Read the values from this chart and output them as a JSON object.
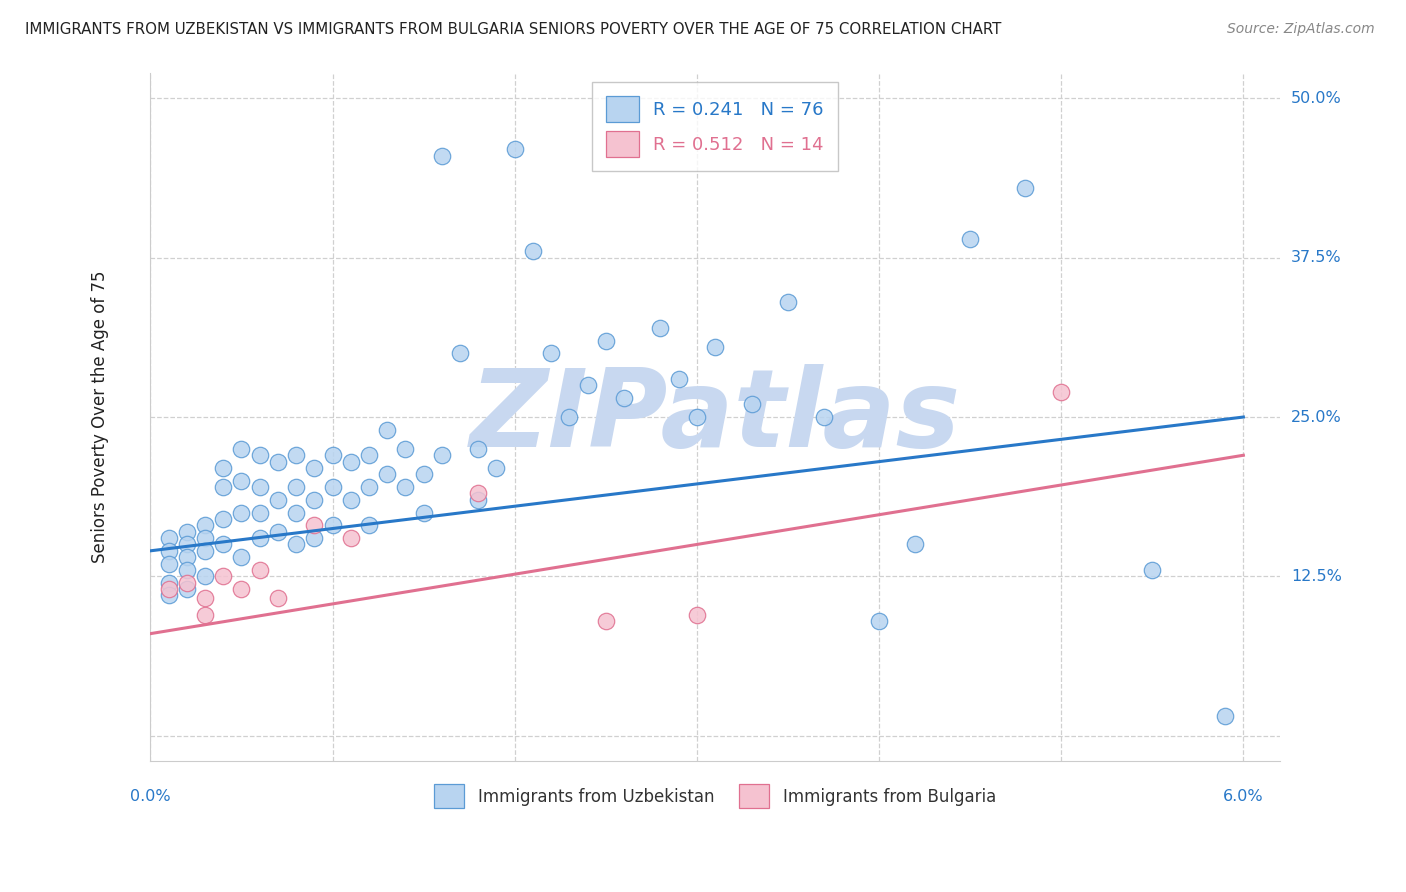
{
  "title": "IMMIGRANTS FROM UZBEKISTAN VS IMMIGRANTS FROM BULGARIA SENIORS POVERTY OVER THE AGE OF 75 CORRELATION CHART",
  "source": "Source: ZipAtlas.com",
  "ylabel": "Seniors Poverty Over the Age of 75",
  "xlim": [
    0.0,
    0.062
  ],
  "ylim": [
    -0.02,
    0.52
  ],
  "plot_xlim": [
    0.0,
    0.06
  ],
  "plot_ylim": [
    0.0,
    0.5
  ],
  "ytick_vals": [
    0.0,
    0.125,
    0.25,
    0.375,
    0.5
  ],
  "ytick_right_labels": {
    "0.50": "50.0%",
    "0.375": "37.5%",
    "0.25": "25.0%",
    "0.125": "12.5%"
  },
  "color_uzbekistan_face": "#b8d4f0",
  "color_uzbekistan_edge": "#5b9bd5",
  "color_bulgaria_face": "#f5c2d0",
  "color_bulgaria_edge": "#e07090",
  "line_color_uzbekistan": "#2878c8",
  "line_color_bulgaria": "#e07090",
  "watermark": "ZIPatlas",
  "watermark_color": "#c8d8f0",
  "title_color": "#222222",
  "axis_label_color": "#2878c8",
  "R_uzbekistan": 0.241,
  "N_uzbekistan": 76,
  "R_bulgaria": 0.512,
  "N_bulgaria": 14,
  "uz_x": [
    0.001,
    0.001,
    0.001,
    0.001,
    0.001,
    0.002,
    0.002,
    0.002,
    0.002,
    0.002,
    0.003,
    0.003,
    0.003,
    0.003,
    0.004,
    0.004,
    0.004,
    0.004,
    0.005,
    0.005,
    0.005,
    0.005,
    0.006,
    0.006,
    0.006,
    0.006,
    0.007,
    0.007,
    0.007,
    0.008,
    0.008,
    0.008,
    0.008,
    0.009,
    0.009,
    0.009,
    0.01,
    0.01,
    0.01,
    0.011,
    0.011,
    0.012,
    0.012,
    0.012,
    0.013,
    0.013,
    0.014,
    0.014,
    0.015,
    0.015,
    0.016,
    0.016,
    0.017,
    0.018,
    0.018,
    0.019,
    0.02,
    0.021,
    0.022,
    0.023,
    0.024,
    0.025,
    0.026,
    0.028,
    0.029,
    0.03,
    0.031,
    0.033,
    0.035,
    0.037,
    0.04,
    0.042,
    0.045,
    0.048,
    0.055,
    0.059
  ],
  "uz_y": [
    0.155,
    0.145,
    0.135,
    0.12,
    0.11,
    0.16,
    0.15,
    0.14,
    0.13,
    0.115,
    0.165,
    0.155,
    0.145,
    0.125,
    0.21,
    0.195,
    0.17,
    0.15,
    0.225,
    0.2,
    0.175,
    0.14,
    0.22,
    0.195,
    0.175,
    0.155,
    0.215,
    0.185,
    0.16,
    0.22,
    0.195,
    0.175,
    0.15,
    0.21,
    0.185,
    0.155,
    0.22,
    0.195,
    0.165,
    0.215,
    0.185,
    0.22,
    0.195,
    0.165,
    0.24,
    0.205,
    0.225,
    0.195,
    0.205,
    0.175,
    0.455,
    0.22,
    0.3,
    0.225,
    0.185,
    0.21,
    0.46,
    0.38,
    0.3,
    0.25,
    0.275,
    0.31,
    0.265,
    0.32,
    0.28,
    0.25,
    0.305,
    0.26,
    0.34,
    0.25,
    0.09,
    0.15,
    0.39,
    0.43,
    0.13,
    0.015
  ],
  "bg_x": [
    0.001,
    0.002,
    0.003,
    0.003,
    0.004,
    0.005,
    0.006,
    0.007,
    0.009,
    0.011,
    0.018,
    0.025,
    0.03,
    0.05
  ],
  "bg_y": [
    0.115,
    0.12,
    0.095,
    0.108,
    0.125,
    0.115,
    0.13,
    0.108,
    0.165,
    0.155,
    0.19,
    0.09,
    0.095,
    0.27
  ],
  "blue_line_x0": 0.0,
  "blue_line_y0": 0.145,
  "blue_line_x1": 0.06,
  "blue_line_y1": 0.25,
  "pink_line_x0": 0.0,
  "pink_line_y0": 0.08,
  "pink_line_x1": 0.06,
  "pink_line_y1": 0.22
}
